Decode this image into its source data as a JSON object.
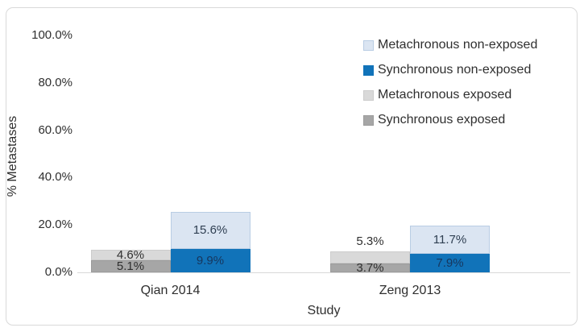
{
  "chart_data": {
    "type": "bar",
    "subtype": "clustered-stacked",
    "title": "",
    "xlabel": "Study",
    "ylabel": "% Metastases",
    "ylim": [
      0,
      100
    ],
    "yticks": [
      "0.0%",
      "20.0%",
      "40.0%",
      "60.0%",
      "80.0%",
      "100.0%"
    ],
    "grid": false,
    "legend_position": "inside-top-right",
    "categories": [
      "Qian 2014",
      "Zeng 2013"
    ],
    "stacks": [
      {
        "name": "exposed",
        "segments": [
          {
            "series": "Synchronous exposed",
            "color": "#a6a6a6",
            "border": "#9b9b9b",
            "label_color": "#2f2f2f",
            "values": [
              5.1,
              3.7
            ],
            "label_pos": [
              "inside",
              "inside"
            ]
          },
          {
            "series": "Metachronous exposed",
            "color": "#d9d9d9",
            "border": "#cccccc",
            "label_color": "#2f2f2f",
            "values": [
              4.6,
              5.3
            ],
            "label_pos": [
              "inside",
              "above"
            ]
          }
        ]
      },
      {
        "name": "non-exposed",
        "segments": [
          {
            "series": "Synchronous non-exposed",
            "color": "#1173b9",
            "border": "#1173b9",
            "label_color": "#17365d",
            "values": [
              9.9,
              7.9
            ],
            "label_pos": [
              "inside",
              "inside"
            ]
          },
          {
            "series": "Metachronous non-exposed",
            "color": "#dbe5f2",
            "border": "#b9cde4",
            "label_color": "#2f3f52",
            "values": [
              15.6,
              11.7
            ],
            "label_pos": [
              "inside",
              "inside"
            ]
          }
        ]
      }
    ],
    "legend": [
      {
        "label": "Metachronous non-exposed",
        "color": "#dbe5f2",
        "border": "#b9cde4"
      },
      {
        "label": "Synchronous non-exposed",
        "color": "#1173b9",
        "border": "#1173b9"
      },
      {
        "label": "Metachronous exposed",
        "color": "#d9d9d9",
        "border": "#cccccc"
      },
      {
        "label": "Synchronous exposed",
        "color": "#a6a6a6",
        "border": "#9b9b9b"
      }
    ],
    "axis_color": "#d9d9d9"
  }
}
